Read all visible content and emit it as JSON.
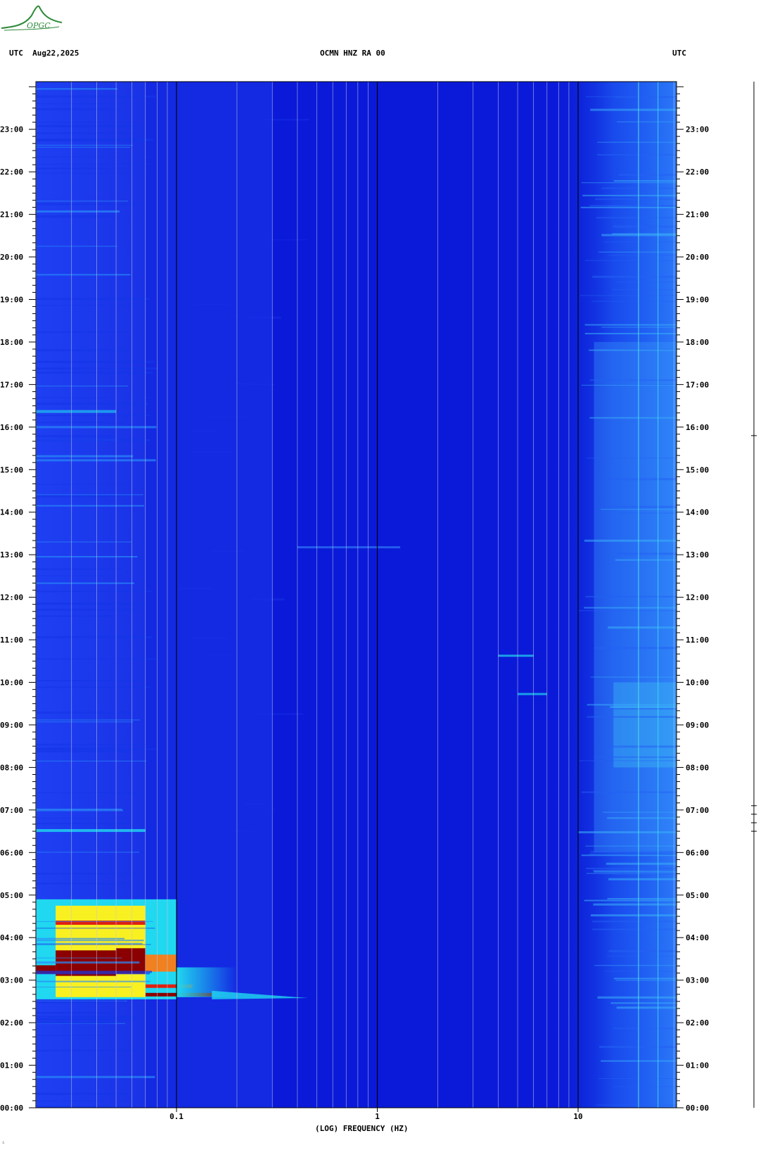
{
  "header": {
    "left_label": "UTC  Aug22,2025",
    "center_label": "OCMN HNZ RA 00",
    "right_label": "UTC"
  },
  "logo": {
    "text": "OPGC"
  },
  "footer": {
    "mark": "∴"
  },
  "colors": {
    "background": "#0b1ad8",
    "deep": "#0a16b8",
    "medium": "#1d3bf0",
    "light": "#2a6cf5",
    "cyan": "#20d8f0",
    "yellow": "#f8f020",
    "orange": "#f08020",
    "red": "#e02010",
    "darkred": "#8b0000",
    "gridline": "#c8c8e0",
    "decadeline": "#000000"
  },
  "chart_data": {
    "type": "heatmap",
    "title": "OCMN HNZ RA 00",
    "xlabel": "(LOG) FREQUENCY (HZ)",
    "ylabel": "UTC",
    "x_scale": "log",
    "xlim": [
      0.02,
      30
    ],
    "ylim": [
      "00:00",
      "24:00"
    ],
    "x_tick_labels": [
      {
        "value": 0.1,
        "label": "0.1"
      },
      {
        "value": 1,
        "label": "1"
      },
      {
        "value": 10,
        "label": "10"
      }
    ],
    "y_tick_labels": [
      "00:00",
      "01:00",
      "02:00",
      "03:00",
      "04:00",
      "05:00",
      "06:00",
      "07:00",
      "08:00",
      "09:00",
      "10:00",
      "11:00",
      "12:00",
      "13:00",
      "14:00",
      "15:00",
      "16:00",
      "17:00",
      "18:00",
      "19:00",
      "20:00",
      "21:00",
      "22:00",
      "23:00"
    ],
    "y_tick_hours": [
      0,
      1,
      2,
      3,
      4,
      5,
      6,
      7,
      8,
      9,
      10,
      11,
      12,
      13,
      14,
      15,
      16,
      17,
      18,
      19,
      20,
      21,
      22,
      23
    ],
    "energy_features": [
      {
        "label": "event",
        "t_start_hours": 2.55,
        "t_end_hours": 4.9,
        "f_min": 0.02,
        "f_max": 0.45,
        "level": "high"
      },
      {
        "label": "low-freq band",
        "t_start_hours": 0,
        "t_end_hours": 24,
        "f_min": 0.02,
        "f_max": 0.07,
        "level": "medium"
      },
      {
        "label": "high-freq noise",
        "t_start_hours": 0,
        "t_end_hours": 24,
        "f_min": 10,
        "f_max": 30,
        "level": "medium"
      }
    ],
    "grid": true
  }
}
